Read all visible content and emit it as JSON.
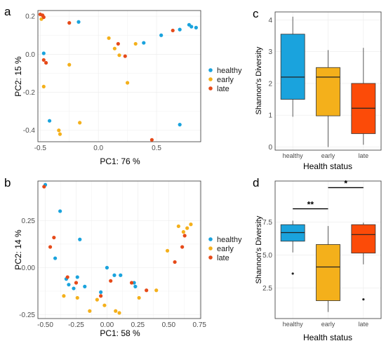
{
  "chart_data": [
    {
      "panel_label": "a",
      "type": "scatter",
      "xlabel": "PC1:  76 %",
      "ylabel": "PC2:  15 %",
      "xlim": [
        -0.52,
        0.88
      ],
      "ylim": [
        -0.46,
        0.23
      ],
      "xticks": [
        -0.5,
        0.0,
        0.5
      ],
      "xtick_labels": [
        "-0.5",
        "0.0",
        "0.5"
      ],
      "yticks": [
        -0.4,
        -0.2,
        0.0,
        0.2
      ],
      "ytick_labels": [
        "-0.4",
        "-0.2",
        "0.0",
        "0.2"
      ],
      "grid": true,
      "legend": {
        "position": "right",
        "entries": [
          "healthy",
          "early",
          "late"
        ]
      },
      "series": [
        {
          "name": "healthy",
          "color": "#1aa3dd",
          "points": [
            [
              -0.17,
              0.17
            ],
            [
              -0.47,
              0.005
            ],
            [
              -0.42,
              -0.35
            ],
            [
              0.39,
              0.06
            ],
            [
              0.54,
              0.1
            ],
            [
              0.7,
              0.13
            ],
            [
              0.78,
              0.155
            ],
            [
              0.8,
              0.145
            ],
            [
              0.84,
              0.14
            ],
            [
              0.7,
              -0.37
            ]
          ]
        },
        {
          "name": "early",
          "color": "#f4b01b",
          "points": [
            [
              -0.49,
              0.185
            ],
            [
              -0.47,
              -0.17
            ],
            [
              -0.25,
              -0.055
            ],
            [
              -0.34,
              -0.4
            ],
            [
              -0.33,
              -0.42
            ],
            [
              -0.16,
              -0.36
            ],
            [
              0.09,
              0.085
            ],
            [
              0.14,
              0.03
            ],
            [
              0.18,
              -0.005
            ],
            [
              0.25,
              -0.15
            ],
            [
              0.32,
              0.055
            ]
          ]
        },
        {
          "name": "late",
          "color": "#e64a19",
          "points": [
            [
              -0.5,
              0.21
            ],
            [
              -0.48,
              0.205
            ],
            [
              -0.47,
              0.195
            ],
            [
              -0.47,
              -0.03
            ],
            [
              -0.45,
              -0.045
            ],
            [
              -0.25,
              0.165
            ],
            [
              0.17,
              0.055
            ],
            [
              0.23,
              -0.01
            ],
            [
              0.64,
              0.125
            ],
            [
              0.46,
              -0.45
            ]
          ]
        }
      ]
    },
    {
      "panel_label": "b",
      "type": "scatter",
      "xlabel": "PC1:  58 %",
      "ylabel": "PC2:  14 %",
      "xlim": [
        -0.56,
        0.76
      ],
      "ylim": [
        -0.27,
        0.46
      ],
      "xticks": [
        -0.5,
        -0.25,
        0.0,
        0.25,
        0.5,
        0.75
      ],
      "xtick_labels": [
        "-0.50",
        "-0.25",
        "0.00",
        "0.25",
        "0.50",
        "0.75"
      ],
      "yticks": [
        -0.25,
        0.0,
        0.25
      ],
      "ytick_labels": [
        "-0.25",
        "0.00",
        "0.25"
      ],
      "grid": true,
      "legend": {
        "position": "right",
        "entries": [
          "healthy",
          "early",
          "late"
        ]
      },
      "series": [
        {
          "name": "healthy",
          "color": "#1aa3dd",
          "points": [
            [
              -0.5,
              0.44
            ],
            [
              -0.38,
              0.3
            ],
            [
              -0.42,
              0.05
            ],
            [
              -0.33,
              -0.06
            ],
            [
              -0.31,
              -0.09
            ],
            [
              -0.27,
              -0.11
            ],
            [
              -0.24,
              -0.05
            ],
            [
              -0.22,
              0.15
            ],
            [
              -0.18,
              -0.1
            ],
            [
              -0.05,
              -0.13
            ],
            [
              0.0,
              0.0
            ],
            [
              0.06,
              -0.04
            ],
            [
              0.11,
              -0.04
            ],
            [
              0.22,
              -0.08
            ],
            [
              0.23,
              -0.1
            ]
          ]
        },
        {
          "name": "early",
          "color": "#f4b01b",
          "points": [
            [
              -0.35,
              -0.15
            ],
            [
              -0.24,
              -0.16
            ],
            [
              -0.14,
              -0.23
            ],
            [
              -0.08,
              -0.17
            ],
            [
              -0.02,
              -0.2
            ],
            [
              0.07,
              -0.23
            ],
            [
              0.1,
              -0.24
            ],
            [
              0.26,
              -0.16
            ],
            [
              0.4,
              -0.12
            ],
            [
              0.49,
              0.09
            ],
            [
              0.58,
              0.22
            ],
            [
              0.62,
              0.19
            ],
            [
              0.65,
              0.21
            ],
            [
              0.68,
              0.23
            ]
          ]
        },
        {
          "name": "late",
          "color": "#e64a19",
          "points": [
            [
              -0.51,
              0.43
            ],
            [
              -0.46,
              0.11
            ],
            [
              -0.43,
              0.16
            ],
            [
              -0.32,
              -0.05
            ],
            [
              -0.25,
              -0.08
            ],
            [
              -0.05,
              -0.15
            ],
            [
              0.03,
              -0.07
            ],
            [
              0.2,
              -0.08
            ],
            [
              0.32,
              -0.12
            ],
            [
              0.55,
              0.03
            ],
            [
              0.61,
              0.11
            ],
            [
              0.63,
              0.17
            ]
          ]
        }
      ]
    },
    {
      "panel_label": "c",
      "type": "box",
      "xlabel": "Health status",
      "ylabel": "Shannon's Diversity",
      "ylim": [
        -0.1,
        4.25
      ],
      "yticks": [
        0,
        1,
        2,
        3,
        4
      ],
      "ytick_labels": [
        "0",
        "1",
        "2",
        "3",
        "4"
      ],
      "grid": true,
      "categories": [
        "healthy",
        "early",
        "late"
      ],
      "colors": [
        "#1aa3dd",
        "#f4b01b",
        "#fc4b08"
      ],
      "boxes": [
        {
          "min": 0.95,
          "q1": 1.5,
          "median": 2.2,
          "q3": 3.55,
          "max": 4.1
        },
        {
          "min": 0.0,
          "q1": 0.98,
          "median": 2.2,
          "q3": 2.5,
          "max": 3.05
        },
        {
          "min": 0.07,
          "q1": 0.42,
          "median": 1.22,
          "q3": 2.0,
          "max": 3.12
        }
      ]
    },
    {
      "panel_label": "d",
      "type": "box",
      "xlabel": "Health status",
      "ylabel": "Shannon's Diversity",
      "ylim": [
        0.2,
        10.6
      ],
      "yticks": [
        2.5,
        5.0,
        7.5
      ],
      "ytick_labels": [
        "2.5",
        "5.0",
        "7.5"
      ],
      "grid": true,
      "categories": [
        "healthy",
        "early",
        "late"
      ],
      "colors": [
        "#1aa3dd",
        "#f4b01b",
        "#fc4b08"
      ],
      "boxes": [
        {
          "min": 5.2,
          "q1": 6.05,
          "median": 6.7,
          "q3": 7.3,
          "max": 7.6,
          "outliers": [
            3.6
          ]
        },
        {
          "min": 0.7,
          "q1": 1.55,
          "median": 4.1,
          "q3": 5.8,
          "max": 7.2
        },
        {
          "min": 4.3,
          "q1": 5.15,
          "median": 6.55,
          "q3": 7.3,
          "max": 7.45,
          "outliers": [
            1.65
          ]
        }
      ],
      "significance": [
        {
          "from": "healthy",
          "to": "early",
          "label": "**",
          "y": 8.5
        },
        {
          "from": "early",
          "to": "late",
          "label": "*",
          "y": 10.1
        }
      ]
    }
  ]
}
